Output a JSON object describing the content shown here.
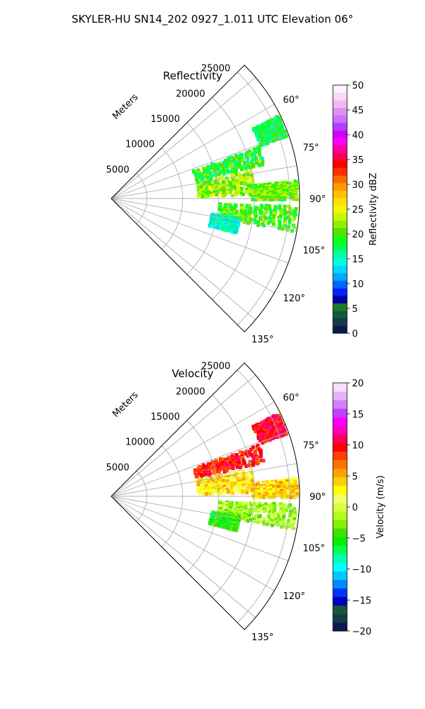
{
  "figure": {
    "suptitle": "SKYLER-HU  SN14_202  0927_1.011 UTC Elevation 06°"
  },
  "chart_data": [
    {
      "type": "polar-sector",
      "title": "Reflectivity",
      "radial_label": "Meters",
      "r_ticks": [
        "5000",
        "10000",
        "15000",
        "20000",
        "25000"
      ],
      "r_tick_values": [
        5000,
        10000,
        15000,
        20000,
        25000
      ],
      "r_max": 25000,
      "theta_ticks": [
        "60°",
        "75°",
        "90°",
        "105°",
        "120°",
        "135°"
      ],
      "theta_tick_values": [
        60,
        75,
        90,
        105,
        120,
        135
      ],
      "theta_range_deg": [
        45,
        135
      ],
      "theta_gridlines_deg": [
        50,
        60,
        70,
        80,
        90,
        100,
        110,
        120,
        130
      ],
      "grid": true,
      "colorbar": {
        "label": "Reflectivity dBZ",
        "ticks": [
          "0",
          "5",
          "10",
          "15",
          "20",
          "25",
          "30",
          "35",
          "40",
          "45",
          "50"
        ],
        "min": 0,
        "max": 50,
        "colors": [
          "#0b1a4e",
          "#17384a",
          "#15573b",
          "#1b7a2a",
          "#0000a0",
          "#0022ff",
          "#0066ff",
          "#00a8ff",
          "#00d8ff",
          "#00ffe0",
          "#00ff9c",
          "#00ff55",
          "#13ff10",
          "#58e000",
          "#8ef000",
          "#c8f800",
          "#f2f800",
          "#ffe100",
          "#ffc000",
          "#ff9a00",
          "#ff6a00",
          "#ff3000",
          "#ff0000",
          "#ff0050",
          "#ff00a0",
          "#ff00ff",
          "#d000ff",
          "#b040ff",
          "#d070ff",
          "#e090f0",
          "#f0b8f0",
          "#f8d8f8",
          "#fff0ff"
        ]
      },
      "echo_regions": [
        {
          "az": [
            63,
            70
          ],
          "r": [
            22000,
            26000
          ],
          "value_dBZ": 18
        },
        {
          "az": [
            70,
            77
          ],
          "r": [
            12000,
            22000
          ],
          "value_dBZ": 19
        },
        {
          "az": [
            78,
            88
          ],
          "r": [
            12000,
            20000
          ],
          "value_dBZ": 22
        },
        {
          "az": [
            84,
            90
          ],
          "r": [
            19500,
            26000
          ],
          "value_dBZ": 21
        },
        {
          "az": [
            92,
            100
          ],
          "r": [
            15000,
            26000
          ],
          "value_dBZ": 20
        },
        {
          "az": [
            98,
            105
          ],
          "r": [
            14000,
            18000
          ],
          "value_dBZ": 15
        }
      ]
    },
    {
      "type": "polar-sector",
      "title": "Velocity",
      "radial_label": "Meters",
      "r_ticks": [
        "5000",
        "10000",
        "15000",
        "20000",
        "25000"
      ],
      "r_tick_values": [
        5000,
        10000,
        15000,
        20000,
        25000
      ],
      "r_max": 25000,
      "theta_ticks": [
        "60°",
        "75°",
        "90°",
        "105°",
        "120°",
        "135°"
      ],
      "theta_tick_values": [
        60,
        75,
        90,
        105,
        120,
        135
      ],
      "theta_range_deg": [
        45,
        135
      ],
      "theta_gridlines_deg": [
        50,
        60,
        70,
        80,
        90,
        100,
        110,
        120,
        130
      ],
      "grid": true,
      "colorbar": {
        "label": "Velocity (m/s)",
        "ticks": [
          "−20",
          "−15",
          "−10",
          "−5",
          "0",
          "5",
          "10",
          "15",
          "20"
        ],
        "min": -20,
        "max": 20,
        "colors": [
          "#0b1a4e",
          "#17384a",
          "#15573b",
          "#0000c0",
          "#0033ff",
          "#0088ff",
          "#00c8ff",
          "#00ffff",
          "#00ffb0",
          "#00ff50",
          "#00f000",
          "#40e000",
          "#80f000",
          "#b0ff20",
          "#d8ff40",
          "#f0ff70",
          "#ffff00",
          "#ffd000",
          "#ffa000",
          "#ff7000",
          "#ff4000",
          "#ff0000",
          "#ff0060",
          "#ff00c0",
          "#ff00ff",
          "#c040ff",
          "#d080f8",
          "#e8b0f8",
          "#f8e0ff"
        ]
      },
      "echo_regions": [
        {
          "az": [
            63,
            70
          ],
          "r": [
            22000,
            26000
          ],
          "value_ms": 10
        },
        {
          "az": [
            70,
            77
          ],
          "r": [
            12000,
            22000
          ],
          "value_ms": 9
        },
        {
          "az": [
            78,
            88
          ],
          "r": [
            12000,
            20000
          ],
          "value_ms": 3
        },
        {
          "az": [
            84,
            90
          ],
          "r": [
            19500,
            26000
          ],
          "value_ms": 4
        },
        {
          "az": [
            92,
            100
          ],
          "r": [
            15000,
            26000
          ],
          "value_ms": -2
        },
        {
          "az": [
            98,
            105
          ],
          "r": [
            14000,
            18000
          ],
          "value_ms": -5
        }
      ]
    }
  ]
}
